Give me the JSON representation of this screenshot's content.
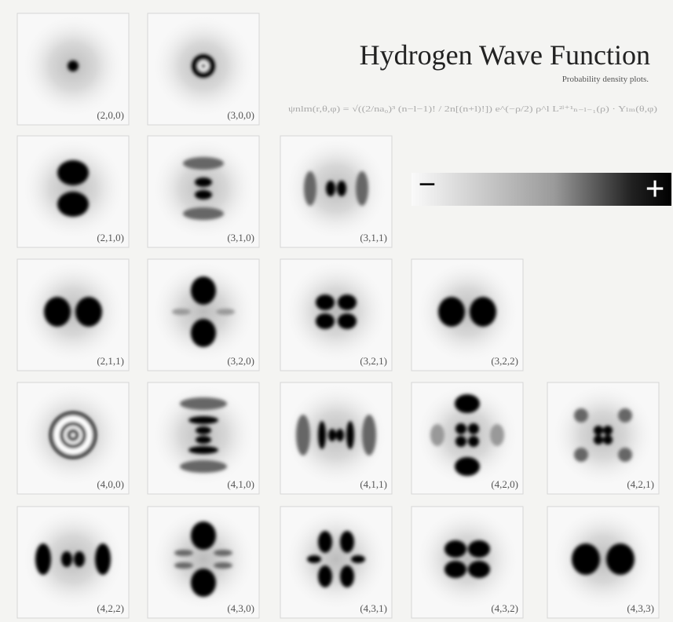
{
  "title": "Hydrogen Wave Function",
  "subtitle": "Probability density plots.",
  "formula": "ψnlm(r,θ,φ) = √((2/na₀)³ (n−l−1)! / 2n[(n+l)!]) e^(−ρ/2) ρ^l L²ˡ⁺¹ₙ₋ₗ₋₁(ρ) · Yₗₘ(θ,φ)",
  "legend": {
    "minus": "−",
    "plus": "+"
  },
  "panels": [
    {
      "label": "(2,0,0)"
    },
    {
      "label": "(3,0,0)"
    },
    {
      "label": "(2,1,0)"
    },
    {
      "label": "(3,1,0)"
    },
    {
      "label": "(3,1,1)"
    },
    {
      "label": "(2,1,1)"
    },
    {
      "label": "(3,2,0)"
    },
    {
      "label": "(3,2,1)"
    },
    {
      "label": "(3,2,2)"
    },
    {
      "label": "(4,0,0)"
    },
    {
      "label": "(4,1,0)"
    },
    {
      "label": "(4,1,1)"
    },
    {
      "label": "(4,2,0)"
    },
    {
      "label": "(4,2,1)"
    },
    {
      "label": "(4,2,2)"
    },
    {
      "label": "(4,3,0)"
    },
    {
      "label": "(4,3,1)"
    },
    {
      "label": "(4,3,2)"
    },
    {
      "label": "(4,3,3)"
    }
  ]
}
